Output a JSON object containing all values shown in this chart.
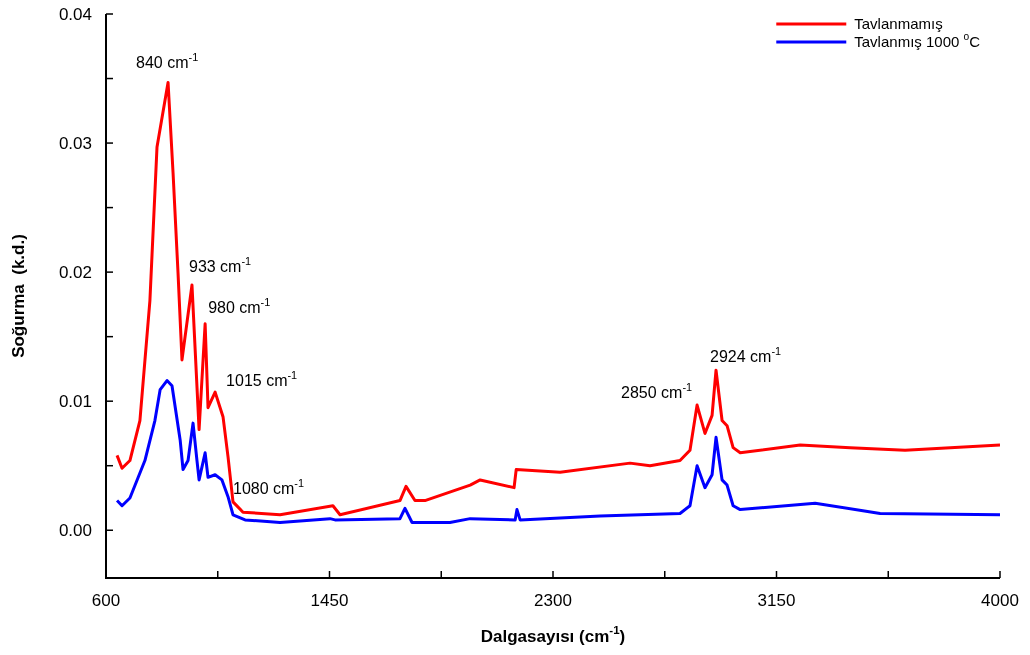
{
  "chart_data": {
    "type": "line",
    "xlabel": "Dalgasayısı (cm$^{-1}$)",
    "ylabel": "Soğurma  (k.d.)",
    "xlim": [
      600,
      4000
    ],
    "xticks": [
      600,
      {
        "value": 1025,
        "label": null
      },
      1450,
      {
        "value": 1875,
        "label": null
      },
      2300,
      {
        "value": 2725,
        "label": null
      },
      3150,
      {
        "value": 3575,
        "label": null
      },
      4000
    ],
    "ylim": [
      -0.0037,
      0.04
    ],
    "yticks": [
      {
        "value": 0,
        "label": "0.00"
      },
      {
        "value": 0.005,
        "label": null
      },
      {
        "value": 0.01,
        "label": "0.01"
      },
      {
        "value": 0.015,
        "label": null
      },
      {
        "value": 0.02,
        "label": "0.02"
      },
      {
        "value": 0.025,
        "label": null
      },
      {
        "value": 0.03,
        "label": "0.03"
      },
      {
        "value": 0.035,
        "label": null
      },
      {
        "value": 0.04,
        "label": "0.04"
      }
    ],
    "grid": false,
    "legend": "top right",
    "marker": "none",
    "line_style": "solid",
    "series": [
      {
        "name": "Tavlanmamış",
        "color": "#ff0000",
        "x": [
          642,
          661,
          691,
          729,
          767,
          794,
          836,
          855,
          874,
          889,
          927,
          954,
          977,
          988,
          1015,
          1045,
          1064,
          1083,
          1121,
          1262,
          1463,
          1490,
          1718,
          1741,
          1775,
          1813,
          1985,
          2023,
          2152,
          2160,
          2327,
          2593,
          2669,
          2783,
          2821,
          2848,
          2878,
          2905,
          2920,
          2943,
          2962,
          2985,
          3012,
          3240,
          3430,
          3639,
          4000
        ],
        "values": [
          0.0058,
          0.0048,
          0.0054,
          0.0085,
          0.0178,
          0.0297,
          0.0347,
          0.0277,
          0.0199,
          0.0132,
          0.019,
          0.0078,
          0.016,
          0.0095,
          0.0107,
          0.0088,
          0.0057,
          0.0022,
          0.0014,
          0.0012,
          0.0019,
          0.0012,
          0.0023,
          0.0034,
          0.0023,
          0.0023,
          0.0035,
          0.0039,
          0.0033,
          0.0047,
          0.0045,
          0.0052,
          0.005,
          0.0054,
          0.0062,
          0.0097,
          0.0075,
          0.0089,
          0.0124,
          0.0085,
          0.0081,
          0.0064,
          0.006,
          0.0066,
          0.0064,
          0.0062,
          0.0066
        ]
      },
      {
        "name": "Tavlanmış 1000 $^{o}$C",
        "color": "#0000ff",
        "x": [
          642,
          661,
          691,
          748,
          786,
          806,
          832,
          851,
          882,
          893,
          912,
          931,
          946,
          954,
          977,
          988,
          1015,
          1041,
          1064,
          1083,
          1129,
          1262,
          1452,
          1471,
          1718,
          1737,
          1764,
          1908,
          1985,
          2156,
          2163,
          2175,
          2479,
          2783,
          2821,
          2848,
          2878,
          2905,
          2920,
          2943,
          2962,
          2985,
          3012,
          3297,
          3544,
          4000
        ],
        "values": [
          0.0023,
          0.0019,
          0.0025,
          0.0054,
          0.0085,
          0.0109,
          0.0116,
          0.0112,
          0.007,
          0.0047,
          0.0054,
          0.0083,
          0.0054,
          0.0039,
          0.006,
          0.0041,
          0.0043,
          0.0039,
          0.0026,
          0.0012,
          0.0008,
          0.0006,
          0.0009,
          0.0008,
          0.0009,
          0.0017,
          0.0006,
          0.0006,
          0.0009,
          0.0008,
          0.0016,
          0.0008,
          0.0011,
          0.0013,
          0.0019,
          0.005,
          0.0033,
          0.0043,
          0.0072,
          0.0039,
          0.0035,
          0.0019,
          0.0016,
          0.0021,
          0.0013,
          0.0012
        ]
      }
    ],
    "annotations": [
      {
        "text": "840 cm$^{-1}$",
        "x": 836,
        "y": 0.0347
      },
      {
        "text": "933 cm$^{-1}$",
        "x": 927,
        "y": 0.019
      },
      {
        "text": "980 cm$^{-1}$",
        "x": 977,
        "y": 0.016
      },
      {
        "text": "1015 cm$^{-1}$",
        "x": 1015,
        "y": 0.0107
      },
      {
        "text": "1080 cm$^{-1}$",
        "x": 1083,
        "y": 0.0022
      },
      {
        "text": "2850 cm$^{-1}$",
        "x": 2848,
        "y": 0.0097
      },
      {
        "text": "2924 cm$^{-1}$",
        "x": 2920,
        "y": 0.0124
      }
    ]
  }
}
